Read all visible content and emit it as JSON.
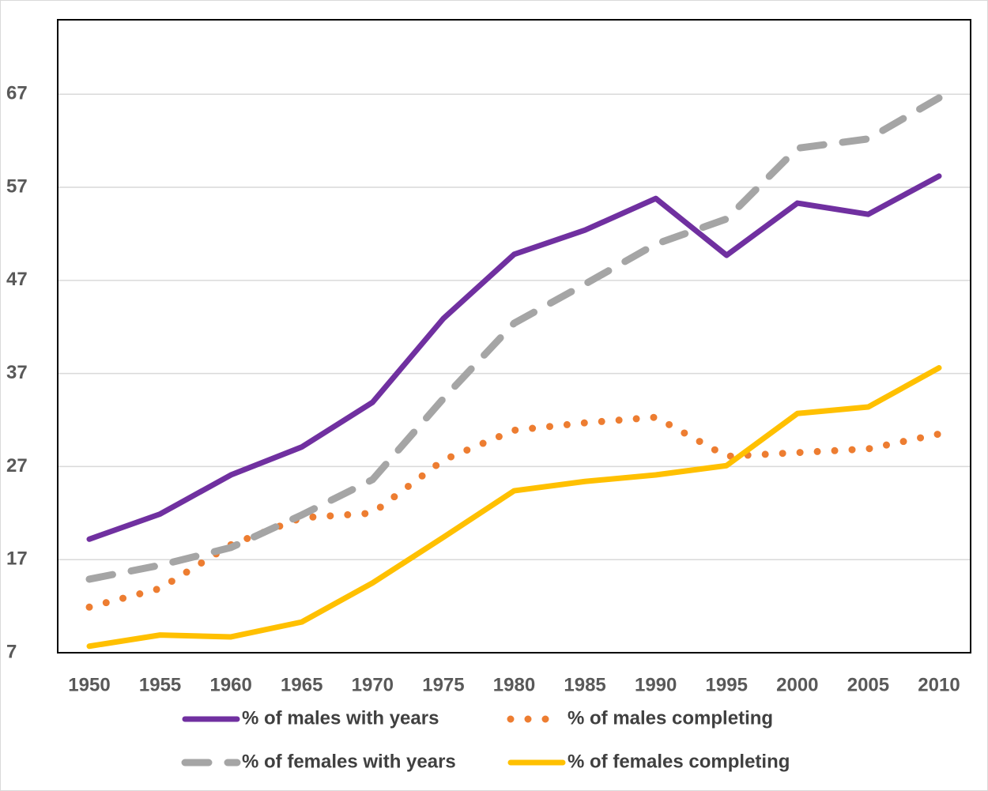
{
  "chart_data": {
    "type": "line",
    "categories": [
      "1950",
      "1955",
      "1960",
      "1965",
      "1970",
      "1975",
      "1980",
      "1985",
      "1990",
      "1995",
      "2000",
      "2005",
      "2010"
    ],
    "series": [
      {
        "name": "% of males with years",
        "color": "#7030a0",
        "style": "solid",
        "values": [
          19.2,
          21.9,
          26.1,
          29.1,
          33.9,
          42.9,
          49.8,
          52.4,
          55.8,
          49.7,
          55.3,
          54.1,
          58.2
        ]
      },
      {
        "name": "% of males completing",
        "color": "#ed7d31",
        "style": "dotted",
        "values": [
          11.9,
          13.9,
          18.6,
          21.5,
          22,
          27.7,
          30.9,
          31.7,
          32.3,
          28.1,
          28.5,
          28.9,
          30.5
        ]
      },
      {
        "name": "% of females with years",
        "color": "#a5a5a5",
        "style": "dashed",
        "values": [
          14.9,
          16.4,
          18.3,
          21.8,
          25.6,
          34.3,
          42.4,
          46.6,
          50.9,
          53.6,
          61.2,
          62.2,
          66.6
        ]
      },
      {
        "name": "% of females completing",
        "color": "#ffc000",
        "style": "solid",
        "values": [
          7.7,
          8.9,
          8.7,
          10.3,
          14.5,
          19.4,
          24.4,
          25.4,
          26.1,
          27.1,
          32.7,
          33.4,
          37.6
        ]
      }
    ],
    "ylim": [
      7,
      75
    ],
    "yticks": [
      7,
      17,
      27,
      37,
      47,
      57,
      67
    ],
    "grid": true,
    "legend": "bottom"
  }
}
